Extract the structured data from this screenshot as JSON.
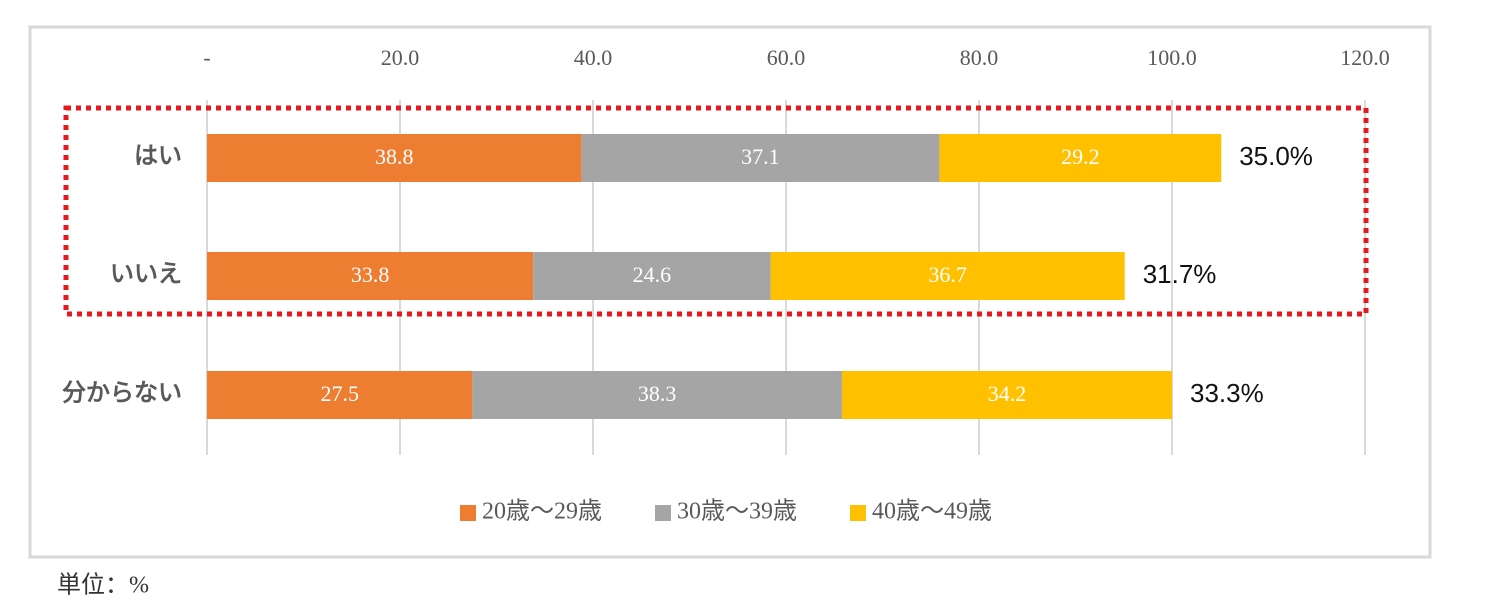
{
  "chart_data": {
    "type": "stacked_barh",
    "categories": [
      "はい",
      "いいえ",
      "分からない"
    ],
    "series": [
      {
        "name": "20歳～29歳",
        "color": "#ed7d31",
        "values": [
          38.8,
          33.8,
          27.5
        ]
      },
      {
        "name": "30歳～39歳",
        "color": "#a5a5a5",
        "values": [
          37.1,
          24.6,
          38.3
        ]
      },
      {
        "name": "40歳～49歳",
        "color": "#ffc000",
        "values": [
          29.2,
          36.7,
          34.2
        ]
      }
    ],
    "xlim": [
      0,
      120
    ],
    "xticks": [
      {
        "value": 0,
        "label": "-"
      },
      {
        "value": 20,
        "label": "20.0"
      },
      {
        "value": 40,
        "label": "40.0"
      },
      {
        "value": 60,
        "label": "60.0"
      },
      {
        "value": 80,
        "label": "80.0"
      },
      {
        "value": 100,
        "label": "100.0"
      },
      {
        "value": 120,
        "label": "120.0"
      }
    ],
    "grid": true,
    "legend": "bottom",
    "annotations": [
      "35.0%",
      "31.7%",
      "33.3%"
    ],
    "note": "単位：%"
  }
}
